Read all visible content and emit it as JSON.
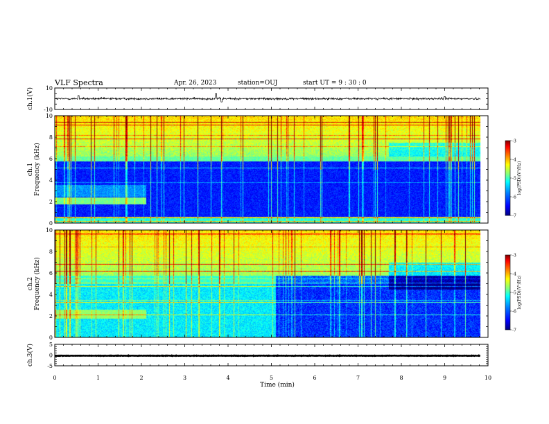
{
  "header": {
    "title": "VLF Spectra",
    "date": "Apr. 26, 2023",
    "station": "station=OUJ",
    "start": "start UT =  9 : 30 : 0"
  },
  "chart_data": [
    {
      "type": "line",
      "name": "ch1-waveform",
      "ylabel": "ch.1(V)",
      "ylim": [
        -10,
        10
      ],
      "yticks": [
        "10",
        "-10"
      ],
      "xlim": [
        0,
        10
      ],
      "data_end_min": 9.82,
      "baseline": 0,
      "noise_amplitude": 1.5,
      "spikes": [
        {
          "x": 0.55,
          "y": 3
        },
        {
          "x": 3.72,
          "y": 5
        },
        {
          "x": 3.85,
          "y": -3
        },
        {
          "x": 9.0,
          "y": 2
        }
      ]
    },
    {
      "type": "heatmap",
      "name": "ch1-spectrogram",
      "ylabel": "ch.1\nFrequency (kHz)",
      "ylim": [
        0,
        10
      ],
      "yticks": [
        "0",
        "2",
        "4",
        "6",
        "8",
        "10"
      ],
      "xlim": [
        0,
        10
      ],
      "data_end_min": 9.82,
      "colorbar": {
        "label": "log(PSD)(V²/Hz)",
        "range": [
          -7,
          -3
        ],
        "ticks": [
          "-3",
          "-4",
          "-5",
          "-6",
          "-7"
        ]
      },
      "features": {
        "upper_band_khz": [
          6.2,
          10
        ],
        "hiss_segment": {
          "t": [
            0,
            2.1
          ],
          "f_khz": [
            1.8,
            2.4
          ]
        },
        "quiet_band_khz": [
          0.5,
          6.0
        ]
      }
    },
    {
      "type": "heatmap",
      "name": "ch2-spectrogram",
      "ylabel": "ch.2\nFrequency (kHz)",
      "ylim": [
        0,
        10
      ],
      "yticks": [
        "0",
        "2",
        "4",
        "6",
        "8",
        "10"
      ],
      "xlim": [
        0,
        10
      ],
      "data_end_min": 9.82,
      "colorbar": {
        "label": "log(PSD)(V²/Hz)",
        "range": [
          -7,
          -3
        ],
        "ticks": [
          "-3",
          "-4",
          "-5",
          "-6",
          "-7"
        ]
      },
      "features": {
        "upper_band_khz": [
          5.8,
          10
        ],
        "hiss_segment": {
          "t": [
            0,
            2.1
          ],
          "f_khz": [
            1.8,
            2.6
          ]
        },
        "quiet_after_min": 5.1
      }
    },
    {
      "type": "line",
      "name": "ch3-waveform",
      "ylabel": "ch.3(V)",
      "ylim": [
        -5,
        5
      ],
      "yticks": [
        "5",
        "0",
        "-5"
      ],
      "xlim": [
        0,
        10
      ],
      "data_end_min": 9.82,
      "baseline": -0.3,
      "noise_amplitude": 0.15
    }
  ],
  "xaxis": {
    "label": "Time (min)",
    "ticks": [
      "0",
      "1",
      "2",
      "3",
      "4",
      "5",
      "6",
      "7",
      "8",
      "9",
      "10"
    ]
  },
  "colors": {
    "colormap": [
      "#00007f",
      "#0000ff",
      "#007fff",
      "#00ffff",
      "#7fff7f",
      "#ffff00",
      "#ff7f00",
      "#ff0000",
      "#7f0000"
    ]
  }
}
